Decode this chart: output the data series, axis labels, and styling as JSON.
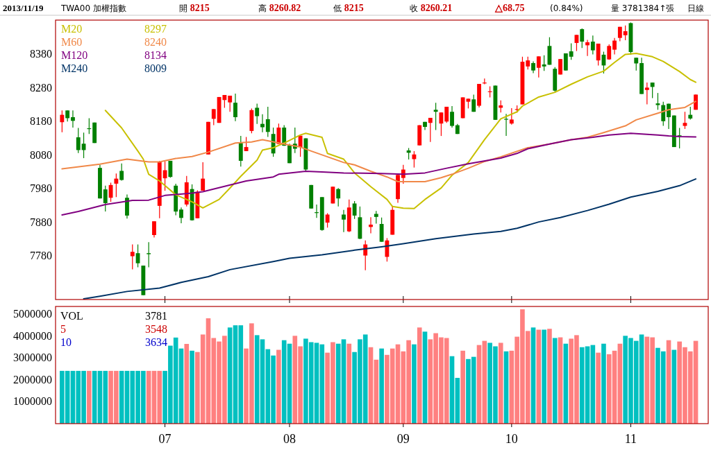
{
  "chart_data": [
    {
      "type": "candlestick",
      "legend": "top left",
      "tick_labels": "y",
      "annotations": [
        "2013/11/19",
        "TWA00 加權指數",
        "開 8215",
        "高 8260.82",
        "低 8215",
        "收 8260.21",
        "△68.75",
        "(0.84%)",
        "量 3781384↑張",
        "日線",
        "8297",
        "8240",
        "8134",
        "8009"
      ],
      "ylim": [
        7650,
        8482
      ],
      "yticks": [
        7780,
        7880,
        7980,
        8080,
        8180,
        8280,
        8380
      ],
      "categories": [
        null,
        null,
        null,
        null,
        null,
        null,
        null,
        null,
        null,
        null,
        null,
        null,
        null,
        null,
        null,
        null,
        null,
        null,
        null,
        "07",
        null,
        null,
        null,
        null,
        null,
        null,
        null,
        null,
        null,
        null,
        null,
        null,
        null,
        null,
        null,
        null,
        null,
        null,
        null,
        null,
        null,
        null,
        "08",
        null,
        null,
        null,
        null,
        null,
        null,
        null,
        null,
        null,
        null,
        null,
        null,
        null,
        null,
        null,
        null,
        null,
        null,
        null,
        null,
        "09",
        null,
        null,
        null,
        null,
        null,
        null,
        null,
        null,
        null,
        null,
        null,
        null,
        null,
        null,
        null,
        null,
        null,
        null,
        null,
        "10",
        null,
        null,
        null,
        null,
        null,
        null,
        null,
        null,
        null,
        null,
        null,
        null,
        null,
        null,
        null,
        null,
        null,
        null,
        null,
        null,
        null,
        "11",
        null,
        null,
        null,
        null,
        null,
        null,
        null,
        null,
        null,
        null,
        null,
        null
      ],
      "ohlc": [
        [
          8178,
          8213,
          8148,
          8200
        ],
        [
          8213,
          8213,
          8180,
          8190
        ],
        [
          8193,
          8213,
          8162,
          8182
        ],
        [
          8133,
          8161,
          8086,
          8095
        ],
        [
          8114,
          8147,
          8071,
          8095
        ],
        [
          8160,
          8190,
          8143,
          8159
        ],
        [
          8177,
          8177,
          8116,
          8116
        ],
        [
          8042,
          8051,
          7951,
          7951
        ],
        [
          7978,
          7989,
          7912,
          7937
        ],
        [
          7953,
          7998,
          7941,
          7991
        ],
        [
          7995,
          8025,
          7955,
          8010
        ],
        [
          8033,
          8055,
          8004,
          8006
        ],
        [
          7953,
          7963,
          7891,
          7900
        ],
        [
          7779,
          7814,
          7740,
          7792
        ],
        [
          7788,
          7814,
          7746,
          7758
        ],
        [
          7751,
          7751,
          7663,
          7663
        ],
        [
          7788,
          7821,
          7746,
          7785
        ],
        [
          7842,
          7883,
          7835,
          7883
        ],
        [
          7929,
          8063,
          7892,
          8060
        ],
        [
          8011,
          8061,
          7974,
          8035
        ],
        [
          8063,
          8063,
          8013,
          8015
        ],
        [
          7989,
          7995,
          7901,
          7912
        ],
        [
          7918,
          7924,
          7877,
          7893
        ],
        [
          7933,
          8018,
          7927,
          7999
        ],
        [
          7979,
          7993,
          7885,
          7886
        ],
        [
          7892,
          7975,
          7892,
          7971
        ],
        [
          7974,
          8059,
          7974,
          8010
        ],
        [
          8082,
          8179,
          8082,
          8179
        ],
        [
          8188,
          8217,
          8169,
          8217
        ],
        [
          8176,
          8253,
          8176,
          8253
        ],
        [
          8244,
          8259,
          8221,
          8259
        ],
        [
          8237,
          8257,
          8209,
          8257
        ],
        [
          8236,
          8263,
          8181,
          8193
        ],
        [
          8116,
          8137,
          8046,
          8063
        ],
        [
          8092,
          8134,
          8092,
          8104
        ],
        [
          8152,
          8219,
          8145,
          8214
        ],
        [
          8221,
          8233,
          8173,
          8196
        ],
        [
          8173,
          8202,
          8148,
          8163
        ],
        [
          8187,
          8224,
          8134,
          8149
        ],
        [
          8143,
          8162,
          8075,
          8085
        ],
        [
          8113,
          8174,
          8113,
          8162
        ],
        [
          8162,
          8169,
          8108,
          8108
        ],
        [
          8109,
          8114,
          8056,
          8056
        ],
        [
          8114,
          8162,
          8086,
          8099
        ],
        [
          8104,
          8138,
          8075,
          8138
        ],
        [
          8130,
          8130,
          8032,
          8037
        ],
        [
          7991,
          7991,
          7921,
          7921
        ],
        [
          7910,
          7933,
          7893,
          7908
        ],
        [
          7955,
          7955,
          7855,
          7857
        ],
        [
          7879,
          7907,
          7864,
          7903
        ],
        [
          7936,
          7986,
          7936,
          7986
        ],
        [
          7979,
          7982,
          7927,
          7951
        ],
        [
          7903,
          7917,
          7851,
          7888
        ],
        [
          7853,
          7948,
          7851,
          7924
        ],
        [
          7936,
          7943,
          7890,
          7900
        ],
        [
          7895,
          7927,
          7830,
          7831
        ],
        [
          7781,
          7826,
          7737,
          7814
        ],
        [
          7866,
          7895,
          7847,
          7873
        ],
        [
          7905,
          7914,
          7876,
          7896
        ],
        [
          7875,
          7894,
          7822,
          7822
        ],
        [
          7777,
          7833,
          7763,
          7826
        ],
        [
          7843,
          7929,
          7843,
          7917
        ],
        [
          7949,
          8021,
          7938,
          8021
        ],
        [
          8012,
          8051,
          7995,
          8037
        ],
        [
          8094,
          8101,
          8067,
          8087
        ],
        [
          8068,
          8092,
          8043,
          8082
        ],
        [
          8109,
          8169,
          8109,
          8169
        ],
        [
          8179,
          8179,
          8155,
          8164
        ],
        [
          8176,
          8191,
          8119,
          8191
        ],
        [
          8215,
          8236,
          8155,
          8209
        ],
        [
          8174,
          8207,
          8137,
          8207
        ],
        [
          8180,
          8224,
          8176,
          8224
        ],
        [
          8209,
          8226,
          8162,
          8167
        ],
        [
          8169,
          8173,
          8143,
          8143
        ],
        [
          8190,
          8252,
          8190,
          8252
        ],
        [
          8239,
          8248,
          8219,
          8248
        ],
        [
          8246,
          8260,
          8209,
          8209
        ],
        [
          8227,
          8292,
          8222,
          8292
        ],
        [
          8295,
          8308,
          8291,
          8296
        ],
        [
          8269,
          8285,
          8252,
          8270
        ],
        [
          8287,
          8287,
          8185,
          8185
        ],
        [
          8221,
          8243,
          8207,
          8228
        ],
        [
          8188,
          8203,
          8137,
          8187
        ],
        [
          8174,
          8220,
          8171,
          8186
        ],
        [
          8215,
          8228,
          8207,
          8217
        ],
        [
          8231,
          8373,
          8231,
          8358
        ],
        [
          8344,
          8373,
          8335,
          8362
        ],
        [
          8354,
          8359,
          8324,
          8332
        ],
        [
          8340,
          8374,
          8311,
          8374
        ],
        [
          8350,
          8377,
          8331,
          8344
        ],
        [
          8405,
          8431,
          8349,
          8349
        ],
        [
          8337,
          8342,
          8269,
          8272
        ],
        [
          8320,
          8366,
          8320,
          8366
        ],
        [
          8383,
          8383,
          8332,
          8332
        ],
        [
          8389,
          8413,
          8364,
          8373
        ],
        [
          8414,
          8438,
          8390,
          8438
        ],
        [
          8455,
          8457,
          8399,
          8418
        ],
        [
          8407,
          8423,
          8375,
          8416
        ],
        [
          8418,
          8436,
          8380,
          8392
        ],
        [
          8362,
          8412,
          8347,
          8412
        ],
        [
          8379,
          8388,
          8323,
          8347
        ],
        [
          8365,
          8410,
          8364,
          8405
        ],
        [
          8394,
          8429,
          8380,
          8421
        ],
        [
          8429,
          8462,
          8419,
          8462
        ],
        [
          8437,
          8466,
          8422,
          8449
        ],
        [
          8473,
          8475,
          8379,
          8387
        ],
        [
          8370,
          8370,
          8332,
          8353
        ],
        [
          8354,
          8370,
          8262,
          8262
        ],
        [
          8274,
          8296,
          8231,
          8281
        ],
        [
          8296,
          8296,
          8250,
          8283
        ],
        [
          8234,
          8265,
          8215,
          8229
        ],
        [
          8229,
          8239,
          8167,
          8181
        ],
        [
          8233,
          8233,
          8158,
          8193
        ],
        [
          8198,
          8198,
          8104,
          8104
        ],
        [
          8139,
          8161,
          8100,
          8137
        ],
        [
          8167,
          8209,
          8158,
          8176
        ],
        [
          8200,
          8224,
          8186,
          8189
        ],
        [
          8215,
          8260.82,
          8215,
          8260.21
        ]
      ],
      "colors": [
        "#ff0000",
        "#008000",
        "#008000",
        "#008000",
        "#008000",
        "#008000",
        "#008000",
        "#008000",
        "#008000",
        "#ff0000",
        "#ff0000",
        "#008000",
        "#008000",
        "#ff0000",
        "#008000",
        "#008000",
        "#008000",
        "#ff0000",
        "#ff0000",
        "#ff0000",
        "#008000",
        "#008000",
        "#008000",
        "#ff0000",
        "#008000",
        "#ff0000",
        "#ff0000",
        "#ff0000",
        "#ff0000",
        "#ff0000",
        "#ff0000",
        "#ff0000",
        "#008000",
        "#008000",
        "#ff0000",
        "#ff0000",
        "#008000",
        "#008000",
        "#008000",
        "#008000",
        "#ff0000",
        "#008000",
        "#008000",
        "#008000",
        "#ff0000",
        "#008000",
        "#008000",
        "#008000",
        "#008000",
        "#ff0000",
        "#ff0000",
        "#008000",
        "#008000",
        "#ff0000",
        "#008000",
        "#008000",
        "#ff0000",
        "#ff0000",
        "#008000",
        "#008000",
        "#ff0000",
        "#ff0000",
        "#ff0000",
        "#ff0000",
        "#008000",
        "#ff0000",
        "#ff0000",
        "#008000",
        "#ff0000",
        "#008000",
        "#ff0000",
        "#ff0000",
        "#008000",
        "#008000",
        "#ff0000",
        "#ff0000",
        "#008000",
        "#ff0000",
        "#ff0000",
        "#ff0000",
        "#008000",
        "#ff0000",
        "#008000",
        "#ff0000",
        "#ff0000",
        "#ff0000",
        "#ff0000",
        "#008000",
        "#ff0000",
        "#008000",
        "#008000",
        "#008000",
        "#ff0000",
        "#008000",
        "#008000",
        "#ff0000",
        "#008000",
        "#ff0000",
        "#008000",
        "#ff0000",
        "#008000",
        "#ff0000",
        "#ff0000",
        "#ff0000",
        "#ff0000",
        "#008000",
        "#008000",
        "#008000",
        "#ff0000",
        "#008000",
        "#008000",
        "#008000",
        "#008000",
        "#008000",
        "#008000",
        "#ff0000",
        "#008000",
        "#ff0000"
      ],
      "series": [
        {
          "type": "line",
          "name": "M20",
          "color": "#c8c000",
          "values": [
            null,
            null,
            null,
            null,
            null,
            null,
            null,
            null,
            8213,
            null,
            null,
            8161,
            null,
            null,
            8092,
            8068,
            8023,
            null,
            8003,
            null,
            null,
            7962,
            null,
            null,
            7941,
            null,
            7923,
            null,
            null,
            7948,
            null,
            7982,
            null,
            8017,
            null,
            null,
            8065,
            8095,
            null,
            8102,
            null,
            8116,
            null,
            null,
            8140,
            8145,
            null,
            null,
            8133,
            8085,
            null,
            null,
            8068,
            null,
            8027,
            null,
            null,
            7986,
            null,
            null,
            7948,
            7927,
            null,
            7922,
            null,
            7921,
            null,
            7948,
            null,
            null,
            7982,
            null,
            8020,
            null,
            null,
            8058,
            null,
            null,
            8126,
            null,
            null,
            8188,
            null,
            null,
            8209,
            8226,
            null,
            null,
            8253,
            null,
            null,
            8267,
            null,
            null,
            8291,
            null,
            null,
            8313,
            null,
            null,
            8330,
            null,
            8356,
            null,
            8380,
            null,
            8383,
            null,
            null,
            8373,
            null,
            8359,
            null,
            null,
            8329,
            null,
            8305,
            8297
          ]
        },
        {
          "type": "line",
          "name": "M60",
          "color": "#f08848",
          "values": [
            8039,
            null,
            null,
            null,
            null,
            null,
            null,
            8053,
            null,
            null,
            null,
            null,
            8068,
            null,
            null,
            null,
            8060,
            null,
            8060,
            null,
            null,
            8070,
            null,
            null,
            8076,
            null,
            null,
            8089,
            null,
            null,
            null,
            null,
            8116,
            null,
            null,
            8119,
            null,
            8126,
            null,
            null,
            null,
            8113,
            null,
            null,
            8104,
            null,
            8092,
            null,
            null,
            8075,
            null,
            null,
            8058,
            null,
            8051,
            null,
            null,
            8032,
            null,
            null,
            8015,
            null,
            8001,
            null,
            8001,
            null,
            null,
            8001,
            null,
            null,
            8013,
            null,
            8023,
            null,
            null,
            8041,
            null,
            null,
            8061,
            null,
            null,
            8075,
            null,
            null,
            null,
            null,
            8102,
            null,
            null,
            null,
            8113,
            null,
            null,
            null,
            8126,
            null,
            null,
            8133,
            null,
            null,
            8147,
            null,
            null,
            null,
            8167,
            null,
            8185,
            null,
            null,
            null,
            8205,
            null,
            8215,
            null,
            null,
            8222,
            null,
            8240
          ]
        },
        {
          "type": "line",
          "name": "M120",
          "color": "#800080",
          "values": [
            7902,
            null,
            null,
            7912,
            null,
            null,
            null,
            null,
            7933,
            null,
            null,
            null,
            null,
            7945,
            null,
            null,
            7946,
            null,
            null,
            7960,
            null,
            null,
            null,
            null,
            7967,
            null,
            7971,
            null,
            null,
            null,
            7987,
            null,
            null,
            null,
            8003,
            null,
            null,
            null,
            null,
            8015,
            8023,
            null,
            null,
            null,
            null,
            8032,
            null,
            null,
            8030,
            null,
            null,
            null,
            8027,
            null,
            null,
            null,
            null,
            null,
            null,
            8025,
            null,
            null,
            null,
            8023,
            null,
            null,
            null,
            8027,
            null,
            null,
            null,
            8041,
            null,
            null,
            null,
            8054,
            null,
            null,
            null,
            null,
            null,
            8071,
            null,
            null,
            8085,
            null,
            8099,
            null,
            null,
            null,
            8113,
            null,
            null,
            null,
            8126,
            null,
            null,
            null,
            8133,
            null,
            null,
            8140,
            null,
            null,
            null,
            8145,
            null,
            null,
            null,
            null,
            8140,
            null,
            8137,
            null,
            8135,
            null,
            null,
            8134
          ]
        },
        {
          "type": "line",
          "name": "M240",
          "color": "#003366",
          "values": [
            null,
            null,
            null,
            null,
            7652,
            null,
            null,
            7660,
            null,
            null,
            null,
            null,
            7674,
            null,
            null,
            null,
            null,
            null,
            7684,
            null,
            null,
            null,
            7701,
            null,
            null,
            null,
            null,
            7718,
            null,
            null,
            null,
            7739,
            null,
            null,
            null,
            null,
            null,
            null,
            null,
            7763,
            null,
            null,
            7773,
            null,
            null,
            null,
            null,
            null,
            7783,
            null,
            null,
            null,
            null,
            null,
            7797,
            null,
            null,
            null,
            null,
            7807,
            null,
            null,
            null,
            7816,
            null,
            null,
            null,
            null,
            null,
            7831,
            null,
            null,
            null,
            null,
            null,
            null,
            7845,
            null,
            null,
            null,
            null,
            7853,
            null,
            null,
            7862,
            null,
            null,
            null,
            7881,
            null,
            null,
            null,
            7894,
            null,
            null,
            null,
            null,
            7915,
            null,
            null,
            null,
            7934,
            null,
            null,
            null,
            7955,
            null,
            null,
            null,
            null,
            7972,
            null,
            null,
            null,
            7989,
            null,
            null,
            8009
          ]
        }
      ]
    },
    {
      "type": "bar",
      "annotations": [
        "VOL",
        "3781",
        "5",
        "3548",
        "10",
        "3634"
      ],
      "ylim": [
        0,
        5350000
      ],
      "yticks": [
        1000000,
        2000000,
        3000000,
        4000000,
        5000000
      ],
      "categories": [
        null,
        null,
        null,
        null,
        null,
        null,
        null,
        null,
        null,
        null,
        null,
        null,
        null,
        null,
        null,
        null,
        null,
        null,
        null,
        "07",
        null,
        null,
        null,
        null,
        null,
        null,
        null,
        null,
        null,
        null,
        null,
        null,
        null,
        null,
        null,
        null,
        null,
        null,
        null,
        null,
        null,
        null,
        "08",
        null,
        null,
        null,
        null,
        null,
        null,
        null,
        null,
        null,
        null,
        null,
        null,
        null,
        null,
        null,
        null,
        null,
        null,
        null,
        null,
        "09",
        null,
        null,
        null,
        null,
        null,
        null,
        null,
        null,
        null,
        null,
        null,
        null,
        null,
        null,
        null,
        null,
        null,
        null,
        null,
        "10",
        null,
        null,
        null,
        null,
        null,
        null,
        null,
        null,
        null,
        null,
        null,
        null,
        null,
        null,
        null,
        null,
        null,
        null,
        null,
        null,
        null,
        "11",
        null,
        null,
        null,
        null,
        null,
        null,
        null,
        null,
        null,
        null,
        null,
        null
      ],
      "values": [
        2410000,
        2410000,
        2410000,
        2410000,
        2410000,
        2410000,
        2410000,
        2410000,
        2410000,
        2410000,
        2410000,
        2410000,
        2410000,
        2410000,
        2410000,
        2410000,
        2410000,
        2410000,
        2410000,
        2410000,
        3560000,
        3930000,
        3430000,
        3640000,
        3330000,
        3270000,
        4070000,
        4810000,
        3910000,
        3750000,
        4010000,
        4390000,
        4490000,
        4490000,
        3430000,
        4580000,
        4040000,
        3850000,
        3400000,
        3110000,
        3370000,
        3810000,
        3650000,
        4010000,
        3530000,
        3880000,
        3720000,
        3690000,
        3620000,
        3240000,
        3720000,
        3650000,
        3850000,
        3650000,
        3270000,
        3850000,
        4070000,
        3490000,
        2920000,
        3430000,
        3140000,
        3430000,
        3620000,
        3300000,
        3810000,
        3620000,
        4390000,
        4200000,
        3850000,
        4130000,
        3940000,
        3910000,
        3080000,
        2090000,
        3330000,
        2950000,
        3050000,
        3590000,
        3780000,
        3690000,
        3530000,
        3690000,
        3300000,
        3330000,
        3970000,
        5220000,
        4230000,
        4390000,
        4290000,
        4290000,
        4330000,
        3910000,
        3940000,
        3650000,
        3880000,
        4040000,
        3490000,
        3530000,
        3590000,
        3240000,
        3650000,
        3170000,
        3330000,
        3650000,
        4010000,
        3910000,
        3780000,
        4070000,
        3970000,
        3940000,
        3460000,
        3300000,
        3810000,
        3370000,
        3750000,
        3490000,
        3300000,
        3780000
      ],
      "colors": [
        "#00c0c0",
        "#00c0c0",
        "#00c0c0",
        "#00c0c0",
        "#00c0c0",
        "#ff8080",
        "#00c0c0",
        "#00c0c0",
        "#00c0c0",
        "#ff8080",
        "#ff8080",
        "#00c0c0",
        "#00c0c0",
        "#00c0c0",
        "#00c0c0",
        "#00c0c0",
        "#ff8080",
        "#ff8080",
        "#ff8080",
        "#00c0c0",
        "#00c0c0",
        "#00c0c0",
        "#00c0c0",
        "#ff8080",
        "#00c0c0",
        "#ff8080",
        "#ff8080",
        "#ff8080",
        "#ff8080",
        "#ff8080",
        "#ff8080",
        "#00c0c0",
        "#00c0c0",
        "#00c0c0",
        "#ff8080",
        "#ff8080",
        "#00c0c0",
        "#00c0c0",
        "#00c0c0",
        "#00c0c0",
        "#ff8080",
        "#00c0c0",
        "#00c0c0",
        "#ff8080",
        "#ff8080",
        "#00c0c0",
        "#00c0c0",
        "#00c0c0",
        "#00c0c0",
        "#ff8080",
        "#ff8080",
        "#00c0c0",
        "#00c0c0",
        "#ff8080",
        "#00c0c0",
        "#00c0c0",
        "#00c0c0",
        "#ff8080",
        "#ff8080",
        "#00c0c0",
        "#ff8080",
        "#ff8080",
        "#ff8080",
        "#ff8080",
        "#ff8080",
        "#00c0c0",
        "#ff8080",
        "#00c0c0",
        "#ff8080",
        "#ff8080",
        "#ff8080",
        "#ff8080",
        "#00c0c0",
        "#00c0c0",
        "#ff8080",
        "#00c0c0",
        "#00c0c0",
        "#ff8080",
        "#ff8080",
        "#00c0c0",
        "#00c0c0",
        "#ff8080",
        "#00c0c0",
        "#ff8080",
        "#ff8080",
        "#ff8080",
        "#ff8080",
        "#00c0c0",
        "#ff8080",
        "#00c0c0",
        "#ff8080",
        "#00c0c0",
        "#ff8080",
        "#00c0c0",
        "#ff8080",
        "#ff8080",
        "#00c0c0",
        "#00c0c0",
        "#00c0c0",
        "#ff8080",
        "#00c0c0",
        "#ff8080",
        "#ff8080",
        "#ff8080",
        "#00c0c0",
        "#00c0c0",
        "#00c0c0",
        "#00c0c0",
        "#ff8080",
        "#ff8080",
        "#00c0c0",
        "#00c0c0",
        "#ff8080",
        "#00c0c0",
        "#ff8080",
        "#ff8080",
        "#ff8080",
        "#ff8080"
      ]
    }
  ]
}
